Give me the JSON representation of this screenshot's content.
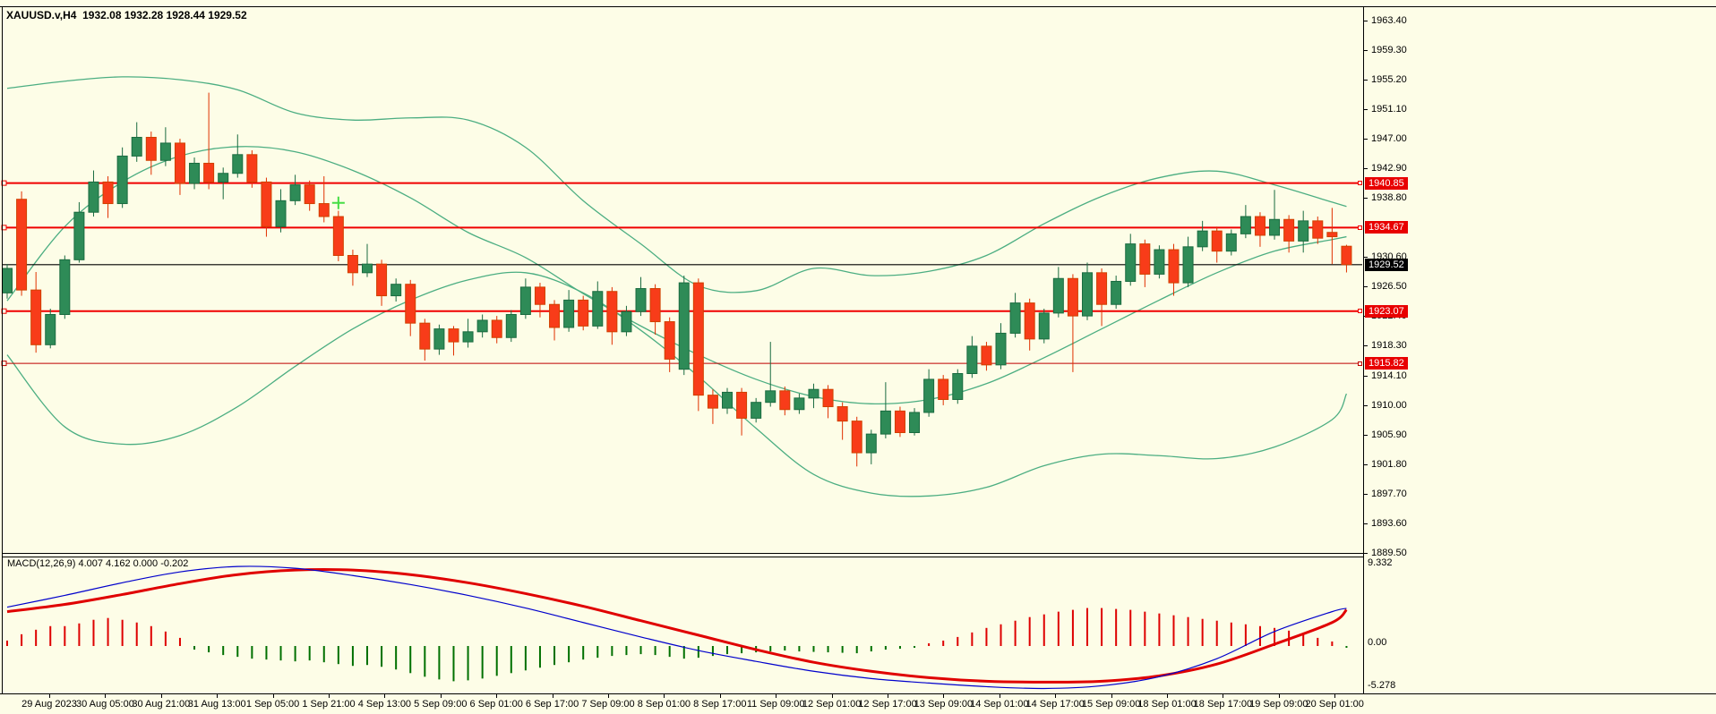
{
  "title": "XAUUSD.v,H4  1932.08 1932.28 1928.44 1929.52",
  "symbol": "XAUUSD.v",
  "timeframe": "H4",
  "current_bar": {
    "open": 1932.08,
    "high": 1932.28,
    "low": 1928.44,
    "close": 1929.52
  },
  "macd": {
    "label": "MACD(12,26,9) 4.007 4.162 0.000 -0.202",
    "values": [
      4.007,
      4.162,
      0.0,
      -0.202
    ],
    "axis_top": "9.332",
    "axis_zero": "0.00",
    "axis_bottom": "-5.278"
  },
  "price_axis": {
    "labels": [
      "1963.40",
      "1959.30",
      "1955.20",
      "1951.10",
      "1947.00",
      "1942.90",
      "1938.80",
      "1930.60",
      "1926.50",
      "1922.40",
      "1918.30",
      "1914.10",
      "1910.00",
      "1905.90",
      "1901.80",
      "1897.70",
      "1893.60",
      "1889.50"
    ],
    "current_label": "1929.52"
  },
  "time_axis": [
    "29 Aug 2023",
    "30 Aug 05:00",
    "30 Aug 21:00",
    "31 Aug 13:00",
    "1 Sep 05:00",
    "1 Sep 21:00",
    "4 Sep 13:00",
    "5 Sep 09:00",
    "6 Sep 01:00",
    "6 Sep 17:00",
    "7 Sep 09:00",
    "8 Sep 01:00",
    "8 Sep 17:00",
    "11 Sep 09:00",
    "12 Sep 01:00",
    "12 Sep 17:00",
    "13 Sep 09:00",
    "14 Sep 01:00",
    "14 Sep 17:00",
    "15 Sep 09:00",
    "18 Sep 01:00",
    "18 Sep 17:00",
    "19 Sep 09:00",
    "20 Sep 01:00"
  ],
  "colors": {
    "background": "#FDFDE7",
    "bull_fill": "#2E8B57",
    "bull_border": "#1A6B40",
    "bear_fill": "#F83C19",
    "bear_border": "#D04000",
    "bear_wick": "#E03000",
    "band": "#4CAE82",
    "hline": "#F00000",
    "hline_dark": "#C00000",
    "current_line": "#000000",
    "hist_pos": "#DE0000",
    "hist_neg": "#007000",
    "macd_line": "#0000CC",
    "signal_line": "#E00000",
    "marker": "#44DD44"
  },
  "chart_data": {
    "type": "candlestick",
    "title": "XAUUSD.v H4 with Bollinger Bands and MACD(12,26,9)",
    "price_range": [
      1889.5,
      1965.4
    ],
    "macd_range": [
      -5.278,
      9.332
    ],
    "grid": false,
    "hlines": [
      {
        "value": 1940.85,
        "label": "1940.85",
        "color": "#F00000",
        "width": 2
      },
      {
        "value": 1934.67,
        "label": "1934.67",
        "color": "#F00000",
        "width": 2
      },
      {
        "value": 1923.07,
        "label": "1923.07",
        "color": "#F00000",
        "width": 2
      },
      {
        "value": 1915.82,
        "label": "1915.82",
        "color": "#C00000",
        "width": 1
      }
    ],
    "current_price": 1929.52,
    "marker": {
      "bar": 23,
      "price": 1938.1,
      "shape": "plus"
    },
    "candles_ohlc": [
      [
        1925.6,
        1929.6,
        1924.8,
        1929.0
      ],
      [
        1938.6,
        1939.7,
        1925.2,
        1926.0
      ],
      [
        1926.0,
        1928.5,
        1917.3,
        1918.4
      ],
      [
        1918.4,
        1923.4,
        1917.9,
        1922.6
      ],
      [
        1922.6,
        1930.8,
        1922.0,
        1930.2
      ],
      [
        1930.2,
        1938.2,
        1929.8,
        1936.8
      ],
      [
        1936.8,
        1942.6,
        1936.2,
        1941.0
      ],
      [
        1941.0,
        1941.8,
        1936.0,
        1938.0
      ],
      [
        1938.0,
        1945.8,
        1937.4,
        1944.6
      ],
      [
        1944.6,
        1949.3,
        1943.8,
        1947.2
      ],
      [
        1947.2,
        1948.0,
        1942.0,
        1944.0
      ],
      [
        1944.0,
        1948.6,
        1943.2,
        1946.4
      ],
      [
        1946.4,
        1947.0,
        1939.2,
        1940.8
      ],
      [
        1940.8,
        1944.4,
        1940.0,
        1943.6
      ],
      [
        1943.6,
        1953.4,
        1940.0,
        1941.0
      ],
      [
        1941.0,
        1943.0,
        1938.6,
        1942.2
      ],
      [
        1942.2,
        1947.6,
        1941.6,
        1944.8
      ],
      [
        1944.8,
        1945.4,
        1940.2,
        1941.0
      ],
      [
        1941.0,
        1941.6,
        1933.4,
        1934.8
      ],
      [
        1934.8,
        1940.0,
        1934.0,
        1938.4
      ],
      [
        1938.4,
        1942.0,
        1937.8,
        1940.6
      ],
      [
        1940.6,
        1941.2,
        1937.0,
        1938.0
      ],
      [
        1938.0,
        1941.8,
        1935.4,
        1936.2
      ],
      [
        1936.2,
        1937.0,
        1930.0,
        1930.8
      ],
      [
        1930.8,
        1931.6,
        1926.6,
        1928.4
      ],
      [
        1928.4,
        1932.4,
        1927.8,
        1929.6
      ],
      [
        1929.6,
        1930.2,
        1923.8,
        1925.2
      ],
      [
        1925.2,
        1927.6,
        1924.4,
        1926.8
      ],
      [
        1926.8,
        1927.4,
        1919.6,
        1921.4
      ],
      [
        1921.4,
        1922.0,
        1916.2,
        1917.8
      ],
      [
        1917.8,
        1921.2,
        1917.0,
        1920.6
      ],
      [
        1920.6,
        1921.0,
        1916.9,
        1918.8
      ],
      [
        1918.8,
        1922.0,
        1918.0,
        1920.2
      ],
      [
        1920.2,
        1922.6,
        1919.4,
        1921.8
      ],
      [
        1921.8,
        1922.4,
        1918.6,
        1919.4
      ],
      [
        1919.4,
        1923.2,
        1918.8,
        1922.6
      ],
      [
        1922.6,
        1927.6,
        1922.0,
        1926.4
      ],
      [
        1926.4,
        1927.0,
        1922.2,
        1924.0
      ],
      [
        1924.0,
        1924.6,
        1919.0,
        1920.8
      ],
      [
        1920.8,
        1926.0,
        1920.2,
        1924.6
      ],
      [
        1924.6,
        1925.2,
        1920.4,
        1921.0
      ],
      [
        1921.0,
        1927.2,
        1920.6,
        1925.8
      ],
      [
        1925.8,
        1926.4,
        1918.4,
        1920.2
      ],
      [
        1920.2,
        1923.8,
        1919.6,
        1923.0
      ],
      [
        1923.0,
        1927.8,
        1922.4,
        1926.2
      ],
      [
        1926.2,
        1926.8,
        1919.8,
        1921.6
      ],
      [
        1921.6,
        1922.2,
        1914.6,
        1916.4
      ],
      [
        1915.0,
        1928.0,
        1914.2,
        1927.0
      ],
      [
        1927.0,
        1927.6,
        1909.2,
        1911.4
      ],
      [
        1911.4,
        1912.2,
        1907.4,
        1909.6
      ],
      [
        1909.6,
        1912.4,
        1908.8,
        1911.8
      ],
      [
        1911.8,
        1912.4,
        1905.8,
        1908.2
      ],
      [
        1908.2,
        1911.0,
        1907.6,
        1910.4
      ],
      [
        1910.4,
        1918.8,
        1909.8,
        1912.0
      ],
      [
        1912.0,
        1912.6,
        1908.6,
        1909.4
      ],
      [
        1909.4,
        1911.6,
        1908.8,
        1911.0
      ],
      [
        1911.0,
        1913.0,
        1909.6,
        1912.2
      ],
      [
        1912.2,
        1912.8,
        1908.2,
        1909.8
      ],
      [
        1909.8,
        1910.4,
        1905.2,
        1907.8
      ],
      [
        1907.8,
        1908.4,
        1901.5,
        1903.4
      ],
      [
        1903.4,
        1906.6,
        1901.8,
        1906.0
      ],
      [
        1906.0,
        1913.2,
        1905.4,
        1909.2
      ],
      [
        1909.2,
        1909.8,
        1905.6,
        1906.2
      ],
      [
        1906.2,
        1909.6,
        1905.8,
        1909.0
      ],
      [
        1909.0,
        1915.0,
        1908.4,
        1913.6
      ],
      [
        1913.6,
        1914.2,
        1910.0,
        1910.8
      ],
      [
        1910.8,
        1915.0,
        1910.2,
        1914.4
      ],
      [
        1914.4,
        1919.6,
        1913.8,
        1918.2
      ],
      [
        1918.2,
        1918.8,
        1914.8,
        1915.6
      ],
      [
        1915.6,
        1921.4,
        1915.0,
        1920.0
      ],
      [
        1920.0,
        1925.6,
        1919.4,
        1924.2
      ],
      [
        1924.2,
        1924.8,
        1917.6,
        1919.2
      ],
      [
        1919.2,
        1923.4,
        1918.6,
        1922.8
      ],
      [
        1922.8,
        1929.2,
        1922.2,
        1927.6
      ],
      [
        1927.6,
        1928.2,
        1914.6,
        1922.4
      ],
      [
        1922.4,
        1929.8,
        1921.8,
        1928.4
      ],
      [
        1928.4,
        1929.0,
        1921.0,
        1924.0
      ],
      [
        1924.0,
        1928.0,
        1923.4,
        1927.2
      ],
      [
        1927.2,
        1933.8,
        1926.6,
        1932.4
      ],
      [
        1932.4,
        1933.0,
        1926.4,
        1928.2
      ],
      [
        1928.2,
        1932.2,
        1927.6,
        1931.6
      ],
      [
        1931.6,
        1932.4,
        1925.2,
        1927.0
      ],
      [
        1927.0,
        1933.4,
        1926.4,
        1932.0
      ],
      [
        1932.0,
        1935.6,
        1931.4,
        1934.2
      ],
      [
        1934.2,
        1934.8,
        1929.8,
        1931.4
      ],
      [
        1931.4,
        1934.4,
        1930.8,
        1933.8
      ],
      [
        1933.8,
        1937.8,
        1933.2,
        1936.2
      ],
      [
        1936.2,
        1936.8,
        1932.0,
        1933.6
      ],
      [
        1933.6,
        1939.9,
        1933.0,
        1935.8
      ],
      [
        1935.8,
        1936.4,
        1931.2,
        1932.8
      ],
      [
        1932.8,
        1937.0,
        1931.2,
        1935.6
      ],
      [
        1935.6,
        1936.2,
        1932.4,
        1933.2
      ],
      [
        1934.0,
        1937.4,
        1929.6,
        1933.4
      ],
      [
        1932.08,
        1932.28,
        1928.44,
        1929.52
      ]
    ],
    "bollinger": {
      "sample_step": 4,
      "upper": [
        1954.0,
        1955.0,
        1955.6,
        1955.2,
        1953.8,
        1950.6,
        1949.6,
        1949.9,
        1949.6,
        1945.8,
        1938.4,
        1932.4,
        1926.6,
        1925.9,
        1929.0,
        1928.0,
        1928.6,
        1930.8,
        1935.2,
        1939.0,
        1941.6,
        1942.5,
        1940.6,
        1938.2,
        1937.6
      ],
      "middle": [
        1924.5,
        1934.8,
        1941.0,
        1944.6,
        1945.9,
        1945.2,
        1942.6,
        1938.8,
        1934.0,
        1930.5,
        1925.5,
        1921.0,
        1917.0,
        1913.6,
        1911.2,
        1910.2,
        1910.8,
        1913.0,
        1916.6,
        1920.6,
        1924.6,
        1928.4,
        1931.4,
        1933.0,
        1933.4
      ],
      "lower": [
        1917.0,
        1907.0,
        1904.6,
        1905.8,
        1909.8,
        1915.4,
        1920.6,
        1924.6,
        1927.4,
        1928.4,
        1925.6,
        1920.4,
        1914.0,
        1906.8,
        1900.4,
        1897.8,
        1897.4,
        1898.6,
        1901.6,
        1903.2,
        1903.0,
        1902.6,
        1904.2,
        1908.0,
        1911.6
      ]
    },
    "macd_indicator": {
      "sample_step": 4,
      "macd_line": [
        4.3,
        5.6,
        7.0,
        8.2,
        8.8,
        8.6,
        7.8,
        6.8,
        5.6,
        4.2,
        2.6,
        1.0,
        -0.5,
        -1.7,
        -2.8,
        -3.6,
        -4.1,
        -4.5,
        -4.7,
        -4.4,
        -3.4,
        -1.4,
        1.6,
        3.8,
        4.162
      ],
      "signal_line": [
        3.8,
        4.6,
        5.7,
        6.9,
        7.9,
        8.4,
        8.4,
        7.9,
        7.0,
        5.8,
        4.4,
        2.8,
        1.2,
        -0.4,
        -1.8,
        -2.8,
        -3.5,
        -3.9,
        -4.0,
        -3.9,
        -3.3,
        -2.0,
        0.2,
        2.6,
        4.007
      ],
      "histogram": [
        0.6,
        1.3,
        1.8,
        2.2,
        2.2,
        2.5,
        2.9,
        3.1,
        2.9,
        2.6,
        2.2,
        1.6,
        0.9,
        -0.4,
        -0.7,
        -1.0,
        -1.2,
        -1.4,
        -1.5,
        -1.6,
        -1.7,
        -1.6,
        -1.8,
        -2.0,
        -2.2,
        -2.1,
        -2.3,
        -2.6,
        -3.0,
        -3.4,
        -3.7,
        -3.9,
        -3.8,
        -3.6,
        -3.3,
        -3.0,
        -2.7,
        -2.4,
        -2.1,
        -1.8,
        -1.5,
        -1.3,
        -1.1,
        -1.0,
        -0.9,
        -1.0,
        -1.2,
        -1.4,
        -1.3,
        -1.1,
        -0.9,
        -0.8,
        -0.7,
        -0.6,
        -0.5,
        -0.6,
        -0.65,
        -0.7,
        -0.75,
        -0.8,
        -0.6,
        -0.4,
        -0.3,
        -0.2,
        0.3,
        0.6,
        1.0,
        1.5,
        2.0,
        2.4,
        2.8,
        3.2,
        3.5,
        3.8,
        4.0,
        4.2,
        4.2,
        4.1,
        4.0,
        3.8,
        3.6,
        3.4,
        3.2,
        3.0,
        2.8,
        2.6,
        2.4,
        2.2,
        2.0,
        1.7,
        1.3,
        0.9,
        0.5,
        -0.2
      ]
    }
  }
}
